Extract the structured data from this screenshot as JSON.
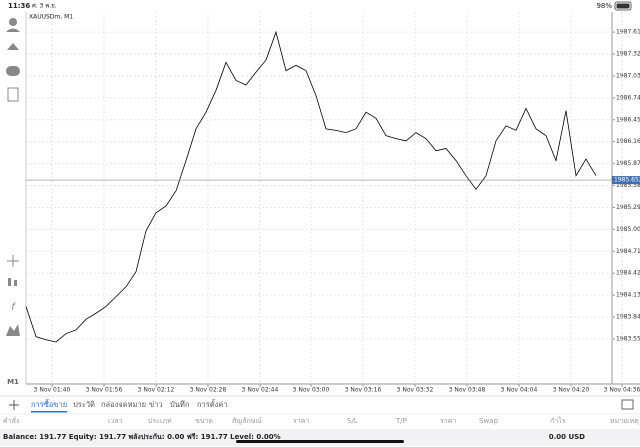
{
  "status_bar": {
    "time": "11:36",
    "date": "ศ. 3 พ.ย.",
    "battery": "98%"
  },
  "chart_data": {
    "type": "line",
    "title": "XAUUSDm, M1",
    "color": "#000000",
    "values": [
      1983.98,
      1983.58,
      1983.54,
      1983.51,
      1983.62,
      1983.67,
      1983.81,
      1983.89,
      1983.98,
      1984.11,
      1984.24,
      1984.44,
      1984.98,
      1985.22,
      1985.31,
      1985.51,
      1985.91,
      1986.33,
      1986.55,
      1986.84,
      1987.21,
      1986.97,
      1986.91,
      1987.08,
      1987.24,
      1987.61,
      1987.1,
      1987.17,
      1987.1,
      1986.77,
      1986.33,
      1986.31,
      1986.28,
      1986.33,
      1986.55,
      1986.47,
      1986.24,
      1986.2,
      1986.17,
      1986.28,
      1986.2,
      1986.04,
      1986.07,
      1985.91,
      1985.71,
      1985.53,
      1985.71,
      1986.17,
      1986.37,
      1986.31,
      1986.6,
      1986.33,
      1986.24,
      1985.91,
      1986.57,
      1985.71,
      1985.93,
      1985.71
    ],
    "xlim": [
      0,
      58.6
    ],
    "xticks": [
      {
        "value": 2.6,
        "label": "3 Nov 01:40"
      },
      {
        "value": 7.8,
        "label": "3 Nov 01:56"
      },
      {
        "value": 13,
        "label": "3 Nov 02:12"
      },
      {
        "value": 18.2,
        "label": "3 Nov 02:28"
      },
      {
        "value": 23.4,
        "label": "3 Nov 02:44"
      },
      {
        "value": 28.5,
        "label": "3 Nov 03:00"
      },
      {
        "value": 33.7,
        "label": "3 Nov 03:16"
      },
      {
        "value": 38.9,
        "label": "3 Nov 03:32"
      },
      {
        "value": 44.1,
        "label": "3 Nov 03:48"
      },
      {
        "value": 49.3,
        "label": "3 Nov 04:04"
      },
      {
        "value": 54.5,
        "label": "3 Nov 04:20"
      },
      {
        "value": 59.6,
        "label": "3 Nov 04:36"
      }
    ],
    "ylim": [
      1982.954,
      1987.876
    ],
    "yticks": [
      {
        "value": 1987.61,
        "label": "1987.610"
      },
      {
        "value": 1987.32,
        "label": "1987.320"
      },
      {
        "value": 1987.03,
        "label": "1987.030"
      },
      {
        "value": 1986.74,
        "label": "1986.740"
      },
      {
        "value": 1986.45,
        "label": "1986.450"
      },
      {
        "value": 1986.16,
        "label": "1986.160"
      },
      {
        "value": 1985.87,
        "label": "1985.870"
      },
      {
        "value": 1985.58,
        "label": "1985.580"
      },
      {
        "value": 1985.29,
        "label": "1985.290"
      },
      {
        "value": 1985.0,
        "label": "1985.000"
      },
      {
        "value": 1984.71,
        "label": "1984.710"
      },
      {
        "value": 1984.42,
        "label": "1984.420"
      },
      {
        "value": 1984.13,
        "label": "1984.130"
      },
      {
        "value": 1983.84,
        "label": "1983.840"
      },
      {
        "value": 1983.55,
        "label": "1983.550"
      }
    ],
    "current_price": 1985.652
  },
  "toolbar": {
    "timeframe": "M1"
  },
  "tabs": [
    "การซื้อขาย",
    "ประวัติ",
    "กล่องจดหมาย",
    "ข่าว",
    "บันทึก",
    "การตั้งค่า"
  ],
  "table_header": [
    "คำสั่ง",
    "เวลา",
    "ประเภท",
    "ขนาด",
    "สัญลักษณ์",
    "ราคา",
    "S/L",
    "T/P",
    "ราคา",
    "Swap",
    "กำไร",
    "หมายเหตุ"
  ],
  "account": {
    "summary": "Balance: 191.77 Equity: 191.77 พลังประกัน: 0.00 ฟรี: 191.77 Level: 0.00%",
    "profit": "0.00 USD"
  }
}
